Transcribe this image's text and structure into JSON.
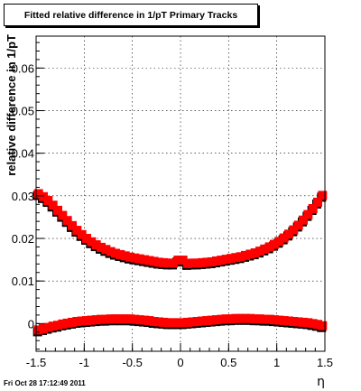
{
  "title": "Fitted relative difference in 1/pT  Primary Tracks",
  "footer": "Fri Oct 28 17:12:49 2011",
  "colors": {
    "series_upper": "#ff0000",
    "series_upper_shadow": "#000000",
    "series_lower": "#ff0000",
    "series_lower_shadow": "#000000",
    "grid": "#000000"
  },
  "chart_data": {
    "type": "scatter",
    "title": "Fitted relative difference in 1/pT  Primary Tracks",
    "xlabel": "η",
    "ylabel": "relative difference in 1/pT",
    "xlim": [
      -1.5,
      1.5
    ],
    "ylim": [
      -0.0065,
      0.0675
    ],
    "grid": true,
    "x_ticks": [
      -1.5,
      -1,
      -0.5,
      0,
      0.5,
      1,
      1.5
    ],
    "x_tick_labels": [
      "-1.5",
      "-1",
      "-0.5",
      "0",
      "0.5",
      "1",
      "1.5"
    ],
    "y_ticks": [
      0,
      0.01,
      0.02,
      0.03,
      0.04,
      0.05,
      0.06
    ],
    "y_tick_labels": [
      "0",
      "0.01",
      "0.02",
      "0.03",
      "0.04",
      "0.05",
      "0.06"
    ],
    "x": [
      -1.475,
      -1.425,
      -1.375,
      -1.325,
      -1.275,
      -1.225,
      -1.175,
      -1.125,
      -1.075,
      -1.025,
      -0.975,
      -0.925,
      -0.875,
      -0.825,
      -0.775,
      -0.725,
      -0.675,
      -0.625,
      -0.575,
      -0.525,
      -0.475,
      -0.425,
      -0.375,
      -0.325,
      -0.275,
      -0.225,
      -0.175,
      -0.125,
      -0.075,
      -0.025,
      0.025,
      0.075,
      0.125,
      0.175,
      0.225,
      0.275,
      0.325,
      0.375,
      0.425,
      0.475,
      0.525,
      0.575,
      0.625,
      0.675,
      0.725,
      0.775,
      0.825,
      0.875,
      0.925,
      0.975,
      1.025,
      1.075,
      1.125,
      1.175,
      1.225,
      1.275,
      1.325,
      1.375,
      1.425,
      1.475
    ],
    "series": [
      {
        "values": [
          0.0305,
          0.0298,
          0.0289,
          0.0278,
          0.0266,
          0.0254,
          0.0242,
          0.023,
          0.0219,
          0.0209,
          0.02,
          0.0192,
          0.0185,
          0.0179,
          0.0174,
          0.0169,
          0.0165,
          0.0162,
          0.0159,
          0.0156,
          0.0154,
          0.0152,
          0.015,
          0.0148,
          0.0146,
          0.0144,
          0.0143,
          0.0142,
          0.0142,
          0.0149,
          0.0149,
          0.0141,
          0.0142,
          0.0142,
          0.0143,
          0.0144,
          0.0145,
          0.0147,
          0.0149,
          0.0151,
          0.0153,
          0.0155,
          0.0157,
          0.016,
          0.0163,
          0.0166,
          0.017,
          0.0175,
          0.018,
          0.0186,
          0.0193,
          0.0201,
          0.021,
          0.022,
          0.0231,
          0.0243,
          0.0256,
          0.027,
          0.0285,
          0.0301
        ]
      },
      {
        "values": [
          -0.0015,
          -0.0012,
          -0.0009,
          -0.0006,
          -0.0004,
          -0.0001,
          0.0001,
          0.0003,
          0.0005,
          0.0006,
          0.0007,
          0.0008,
          0.0009,
          0.001,
          0.001,
          0.0011,
          0.0011,
          0.0011,
          0.0011,
          0.0011,
          0.001,
          0.0009,
          0.0008,
          0.0007,
          0.0005,
          0.0004,
          0.0003,
          0.0002,
          0.0002,
          0.0002,
          0.0002,
          0.0003,
          0.0004,
          0.0005,
          0.0006,
          0.0007,
          0.0008,
          0.0009,
          0.001,
          0.0011,
          0.0011,
          0.0012,
          0.0012,
          0.0012,
          0.0012,
          0.0011,
          0.0011,
          0.001,
          0.001,
          0.0009,
          0.0008,
          0.0007,
          0.0006,
          0.0005,
          0.0004,
          0.0003,
          0.0002,
          0.0,
          -0.0002,
          -0.0005
        ]
      }
    ]
  }
}
